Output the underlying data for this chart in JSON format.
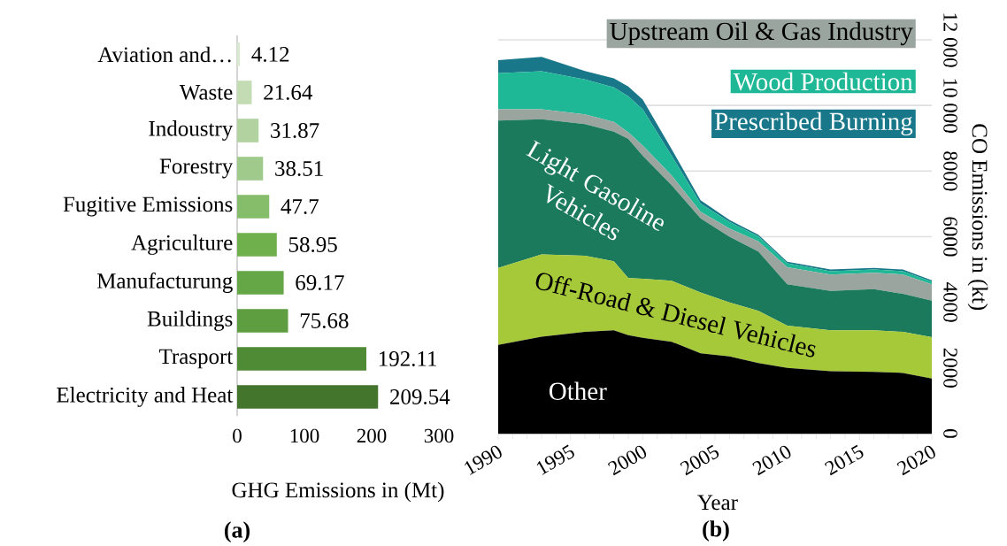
{
  "chart_data": [
    {
      "type": "bar",
      "orientation": "horizontal",
      "title": "(a)",
      "xlabel": "GHG Emissions in (Mt)",
      "categories": [
        "Aviation and…",
        "Waste",
        "Indoustry",
        "Forestry",
        "Fugitive Emissions",
        "Agriculture",
        "Manufacturung",
        "Buildings",
        "Trasport",
        "Electricity and Heat"
      ],
      "values": [
        4.12,
        21.64,
        31.87,
        38.51,
        47.7,
        58.95,
        69.17,
        75.68,
        192.11,
        209.54
      ],
      "colors": [
        "#dbe8d0",
        "#c4dcb4",
        "#b2d3a0",
        "#a0c98c",
        "#86bd6a",
        "#6fb04c",
        "#65a646",
        "#5e9e40",
        "#4f8a35",
        "#43762c"
      ],
      "xlim": [
        0,
        300
      ],
      "xticks": [
        0,
        100,
        200,
        300
      ],
      "data_labels": true
    },
    {
      "type": "area",
      "stacked": true,
      "title": "(b)",
      "xlabel": "Year",
      "ylabel": "CO Emissions in (kt)",
      "x": [
        1990,
        1993,
        1996,
        1998,
        1999,
        2000,
        2002,
        2004,
        2006,
        2008,
        2010,
        2013,
        2016,
        2018,
        2020
      ],
      "series": [
        {
          "name": "Other",
          "color": "#000000",
          "values": [
            2700,
            2950,
            3100,
            3150,
            3000,
            2920,
            2800,
            2450,
            2350,
            2150,
            2000,
            1900,
            1880,
            1850,
            1680
          ]
        },
        {
          "name": "Off-Road & Diesel Vehicles",
          "color": "#a6c93a",
          "values": [
            2350,
            2510,
            2320,
            2100,
            1740,
            1800,
            1860,
            1850,
            1650,
            1590,
            1290,
            1250,
            1270,
            1250,
            1260
          ]
        },
        {
          "name": "Light Gasoline Vehicles",
          "color": "#1c7a5c",
          "values": [
            4490,
            4120,
            4010,
            3950,
            4240,
            3750,
            2910,
            2260,
            2000,
            1810,
            1260,
            1200,
            1250,
            1160,
            1110
          ]
        },
        {
          "name": "Upstream Oil & Gas Industry",
          "color": "#9aa5a0",
          "values": [
            340,
            300,
            300,
            300,
            200,
            310,
            300,
            200,
            250,
            310,
            520,
            500,
            500,
            590,
            500
          ]
        },
        {
          "name": "Wood Production",
          "color": "#1eb896",
          "values": [
            1100,
            1160,
            1060,
            1050,
            1100,
            1100,
            600,
            250,
            200,
            150,
            120,
            100,
            100,
            100,
            80
          ]
        },
        {
          "name": "Prescribed Burning",
          "color": "#18788a",
          "values": [
            400,
            440,
            260,
            280,
            300,
            300,
            200,
            100,
            60,
            50,
            50,
            50,
            50,
            50,
            40
          ]
        }
      ],
      "xlim": [
        1990,
        2020
      ],
      "xticks": [
        1990,
        1995,
        2000,
        2005,
        2010,
        2015,
        2020
      ],
      "ylim": [
        0,
        12000
      ],
      "yticks": [
        0,
        2000,
        4000,
        6000,
        8000,
        {
          "value": 10000,
          "label": "10 000"
        },
        {
          "value": 12000,
          "label": "12 000"
        }
      ],
      "grid": "y"
    }
  ]
}
